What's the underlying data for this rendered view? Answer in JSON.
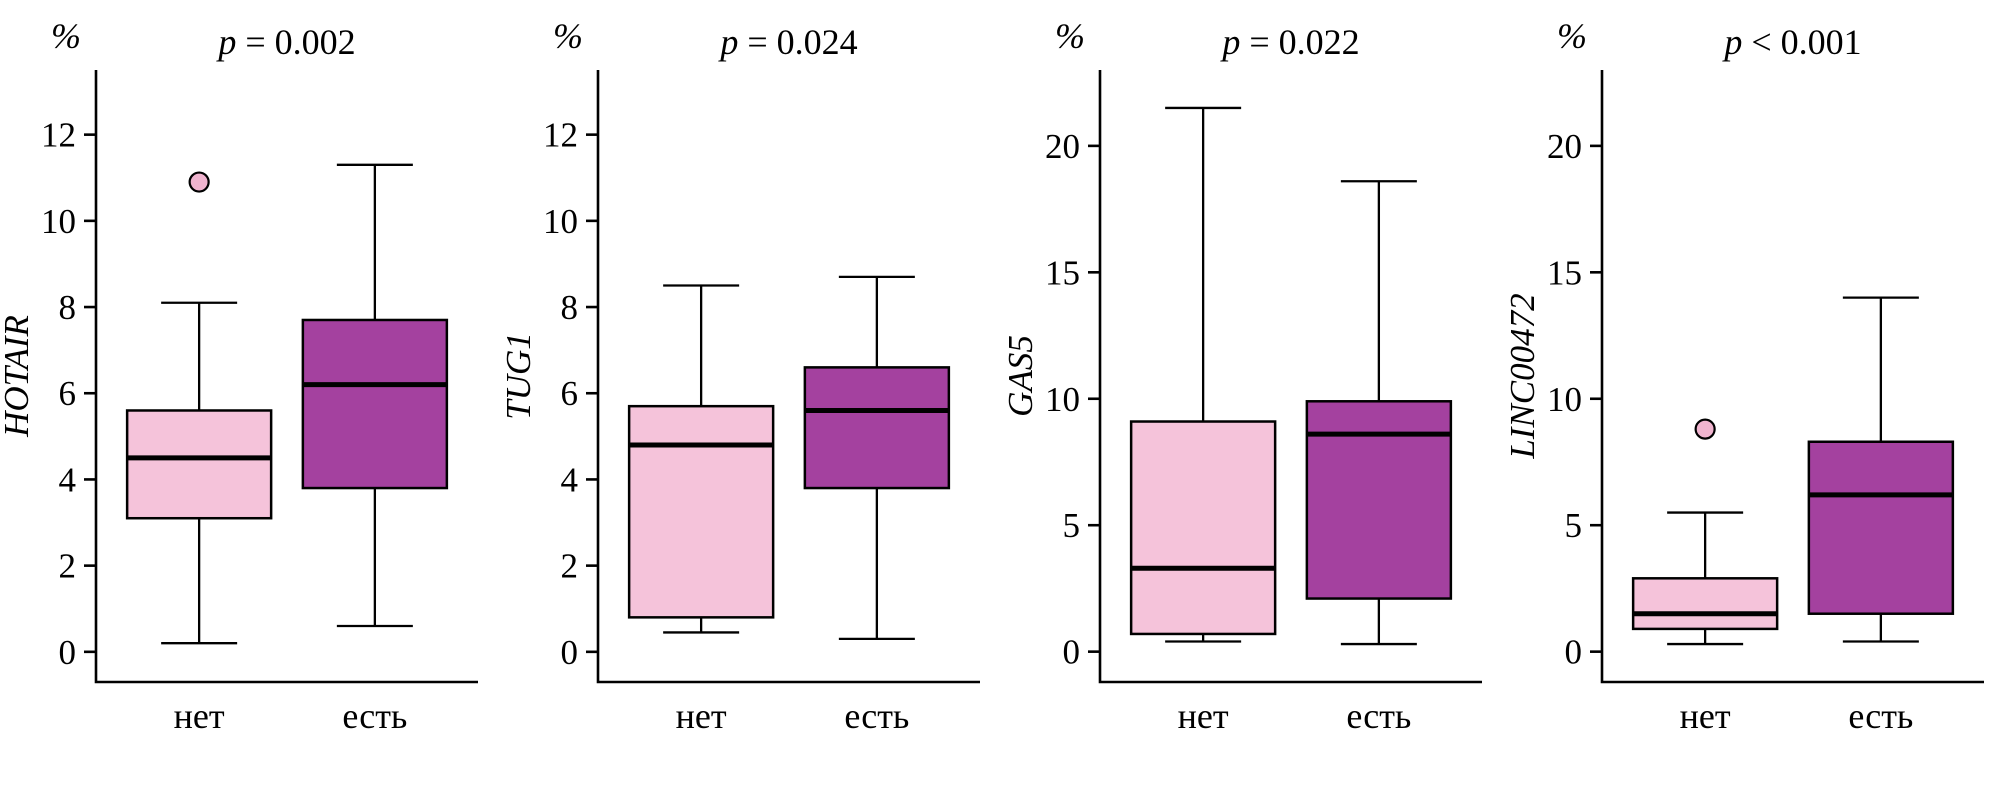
{
  "figure": {
    "unit_label": "%",
    "categories": [
      "нет",
      "есть"
    ],
    "colors": {
      "box_no": "#f5c3da",
      "box_yes": "#a4419f",
      "outlier_fill": "#f0b4cf",
      "stroke": "#000000",
      "background": "#ffffff"
    }
  },
  "chart_data": [
    {
      "type": "boxplot",
      "gene": "HOTAIR",
      "p_label": "p = 0.002",
      "unit": "%",
      "categories": [
        "нет",
        "есть"
      ],
      "yticks": [
        0,
        2,
        4,
        6,
        8,
        10,
        12
      ],
      "ymin": -0.7,
      "ymax": 13.5,
      "boxes": [
        {
          "category": "нет",
          "low": 0.2,
          "q1": 3.1,
          "median": 4.5,
          "q3": 5.6,
          "high": 8.1,
          "outliers": [
            10.9
          ],
          "fill": "#f5c3da"
        },
        {
          "category": "есть",
          "low": 0.6,
          "q1": 3.8,
          "median": 6.2,
          "q3": 7.7,
          "high": 11.3,
          "outliers": [],
          "fill": "#a4419f"
        }
      ]
    },
    {
      "type": "boxplot",
      "gene": "TUG1",
      "p_label": "p = 0.024",
      "unit": "%",
      "categories": [
        "нет",
        "есть"
      ],
      "yticks": [
        0,
        2,
        4,
        6,
        8,
        10,
        12
      ],
      "ymin": -0.7,
      "ymax": 13.5,
      "boxes": [
        {
          "category": "нет",
          "low": 0.45,
          "q1": 0.8,
          "median": 4.8,
          "q3": 5.7,
          "high": 8.5,
          "outliers": [],
          "fill": "#f5c3da"
        },
        {
          "category": "есть",
          "low": 0.3,
          "q1": 3.8,
          "median": 5.6,
          "q3": 6.6,
          "high": 8.7,
          "outliers": [],
          "fill": "#a4419f"
        }
      ]
    },
    {
      "type": "boxplot",
      "gene": "GAS5",
      "p_label": "p = 0.022",
      "unit": "%",
      "categories": [
        "нет",
        "есть"
      ],
      "yticks": [
        0,
        5,
        10,
        15,
        20
      ],
      "ymin": -1.2,
      "ymax": 23.0,
      "boxes": [
        {
          "category": "нет",
          "low": 0.4,
          "q1": 0.7,
          "median": 3.3,
          "q3": 9.1,
          "high": 21.5,
          "outliers": [],
          "fill": "#f5c3da"
        },
        {
          "category": "есть",
          "low": 0.3,
          "q1": 2.1,
          "median": 8.6,
          "q3": 9.9,
          "high": 18.6,
          "outliers": [],
          "fill": "#a4419f"
        }
      ]
    },
    {
      "type": "boxplot",
      "gene": "LINC00472",
      "p_label": "p < 0.001",
      "unit": "%",
      "categories": [
        "нет",
        "есть"
      ],
      "yticks": [
        0,
        5,
        10,
        15,
        20
      ],
      "ymin": -1.2,
      "ymax": 23.0,
      "boxes": [
        {
          "category": "нет",
          "low": 0.3,
          "q1": 0.9,
          "median": 1.5,
          "q3": 2.9,
          "high": 5.5,
          "outliers": [
            8.8
          ],
          "fill": "#f5c3da"
        },
        {
          "category": "есть",
          "low": 0.4,
          "q1": 1.5,
          "median": 6.2,
          "q3": 8.3,
          "high": 14.0,
          "outliers": [],
          "fill": "#a4419f"
        }
      ]
    }
  ]
}
